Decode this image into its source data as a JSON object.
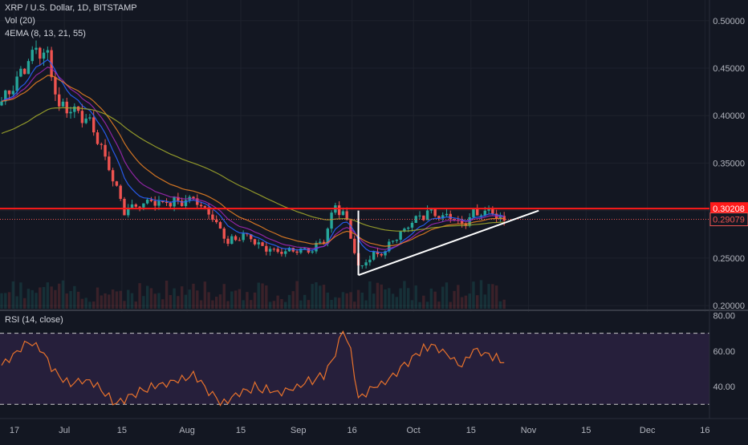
{
  "header": {
    "symbol_line": "XRP / U.S. Dollar, 1D, BITSTAMP",
    "volume_indicator": "Vol (20)",
    "ema_indicator": "4EMA (8, 13, 21, 55)"
  },
  "rsi_panel": {
    "label": "RSI (14, close)"
  },
  "colors": {
    "background": "#131722",
    "grid": "#1e222d",
    "candle_up": "#26a69a",
    "candle_down": "#ef5350",
    "resistance": "#ff1a1a",
    "ema8": "#2962ff",
    "ema13": "#9c27b0",
    "ema21": "#e67e22",
    "ema55": "#9ea52b",
    "rsi_line": "#e8722c",
    "rsi_band": "#2a2140",
    "trendline": "#ffffff"
  },
  "chart_data": [
    {
      "type": "candlestick",
      "title": "XRP / U.S. Dollar, 1D, BITSTAMP",
      "x_tick_labels": [
        "17",
        "Jul",
        "15",
        "Aug",
        "15",
        "Sep",
        "16",
        "Oct",
        "15",
        "Nov",
        "15",
        "Dec",
        "16"
      ],
      "y_tick_labels": [
        "0.20000",
        "0.25000",
        "0.30000",
        "0.35000",
        "0.40000",
        "0.45000",
        "0.50000"
      ],
      "ylim": [
        0.195,
        0.515
      ],
      "price_labels": [
        {
          "value": 0.30208,
          "text": "0.30208",
          "style": "resistance"
        },
        {
          "value": 0.29079,
          "text": "0.29079",
          "style": "last"
        }
      ],
      "horizontal_lines": [
        {
          "name": "resistance",
          "value": 0.30208,
          "style": "solid"
        },
        {
          "name": "last-price",
          "value": 0.29079,
          "style": "dotted"
        }
      ],
      "anchors": [
        {
          "day": 0,
          "price": 0.415
        },
        {
          "day": 5,
          "price": 0.445
        },
        {
          "day": 9,
          "price": 0.47
        },
        {
          "day": 12,
          "price": 0.462
        },
        {
          "day": 15,
          "price": 0.41
        },
        {
          "day": 20,
          "price": 0.405
        },
        {
          "day": 24,
          "price": 0.385
        },
        {
          "day": 28,
          "price": 0.345
        },
        {
          "day": 32,
          "price": 0.3
        },
        {
          "day": 38,
          "price": 0.31
        },
        {
          "day": 44,
          "price": 0.308
        },
        {
          "day": 50,
          "price": 0.312
        },
        {
          "day": 55,
          "price": 0.295
        },
        {
          "day": 59,
          "price": 0.265
        },
        {
          "day": 63,
          "price": 0.275
        },
        {
          "day": 68,
          "price": 0.262
        },
        {
          "day": 74,
          "price": 0.255
        },
        {
          "day": 80,
          "price": 0.258
        },
        {
          "day": 84,
          "price": 0.27
        },
        {
          "day": 87,
          "price": 0.305
        },
        {
          "day": 90,
          "price": 0.29
        },
        {
          "day": 93,
          "price": 0.24
        },
        {
          "day": 97,
          "price": 0.252
        },
        {
          "day": 100,
          "price": 0.258
        },
        {
          "day": 104,
          "price": 0.278
        },
        {
          "day": 108,
          "price": 0.29
        },
        {
          "day": 112,
          "price": 0.3
        },
        {
          "day": 116,
          "price": 0.294
        },
        {
          "day": 120,
          "price": 0.286
        },
        {
          "day": 123,
          "price": 0.298
        },
        {
          "day": 127,
          "price": 0.3
        },
        {
          "day": 131,
          "price": 0.291
        }
      ],
      "trendlines": [
        {
          "name": "triangle-vertical-leg",
          "from": {
            "day": 93,
            "price": 0.3
          },
          "to": {
            "day": 93,
            "price": 0.232
          }
        },
        {
          "name": "triangle-ascending-support",
          "from": {
            "day": 93,
            "price": 0.232
          },
          "to": {
            "day": 140,
            "price": 0.3
          }
        }
      ],
      "moving_averages": [
        {
          "name": "EMA 8",
          "period": 8,
          "color_key": "ema8"
        },
        {
          "name": "EMA 13",
          "period": 13,
          "color_key": "ema13"
        },
        {
          "name": "EMA 21",
          "period": 21,
          "color_key": "ema21"
        },
        {
          "name": "EMA 55",
          "period": 55,
          "color_key": "ema55"
        }
      ]
    },
    {
      "type": "line",
      "title": "RSI (14, close)",
      "y_tick_labels": [
        "40.00",
        "60.00",
        "80.00"
      ],
      "ylim": [
        22,
        82
      ],
      "levels": [
        70,
        30
      ],
      "anchors": [
        {
          "day": 0,
          "value": 52
        },
        {
          "day": 4,
          "value": 60
        },
        {
          "day": 7,
          "value": 66
        },
        {
          "day": 10,
          "value": 62
        },
        {
          "day": 14,
          "value": 48
        },
        {
          "day": 18,
          "value": 42
        },
        {
          "day": 22,
          "value": 44
        },
        {
          "day": 26,
          "value": 38
        },
        {
          "day": 30,
          "value": 30
        },
        {
          "day": 34,
          "value": 36
        },
        {
          "day": 40,
          "value": 40
        },
        {
          "day": 46,
          "value": 43
        },
        {
          "day": 50,
          "value": 46
        },
        {
          "day": 54,
          "value": 38
        },
        {
          "day": 57,
          "value": 30
        },
        {
          "day": 60,
          "value": 34
        },
        {
          "day": 66,
          "value": 40
        },
        {
          "day": 72,
          "value": 36
        },
        {
          "day": 78,
          "value": 41
        },
        {
          "day": 84,
          "value": 47
        },
        {
          "day": 87,
          "value": 58
        },
        {
          "day": 89,
          "value": 72
        },
        {
          "day": 91,
          "value": 60
        },
        {
          "day": 93,
          "value": 34
        },
        {
          "day": 97,
          "value": 40
        },
        {
          "day": 101,
          "value": 44
        },
        {
          "day": 104,
          "value": 50
        },
        {
          "day": 108,
          "value": 58
        },
        {
          "day": 112,
          "value": 64
        },
        {
          "day": 116,
          "value": 58
        },
        {
          "day": 120,
          "value": 52
        },
        {
          "day": 123,
          "value": 60
        },
        {
          "day": 127,
          "value": 58
        },
        {
          "day": 131,
          "value": 53
        }
      ]
    }
  ]
}
